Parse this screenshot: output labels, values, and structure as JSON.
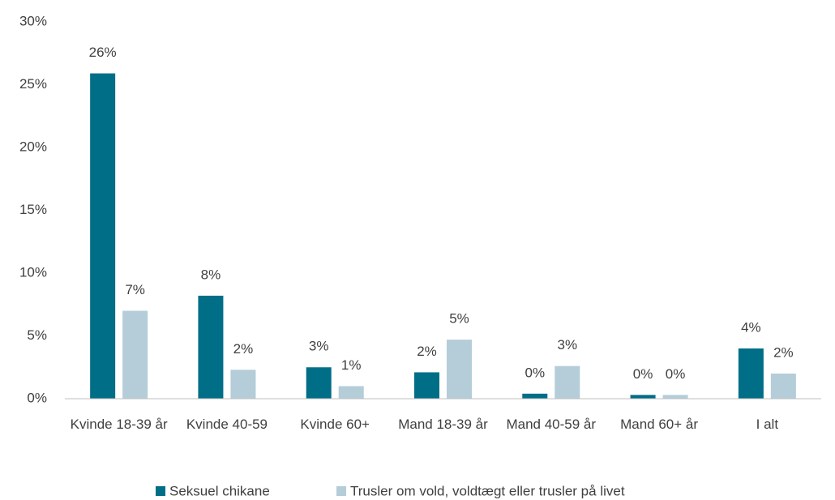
{
  "chart_data": {
    "type": "bar",
    "categories": [
      "Kvinde 18-39 år",
      "Kvinde 40-59",
      "Kvinde 60+",
      "Mand 18-39 år",
      "Mand 40-59 år",
      "Mand 60+ år",
      "I alt"
    ],
    "series": [
      {
        "name": "Seksuel chikane",
        "color": "#006e87",
        "values": [
          25.9,
          8.2,
          2.5,
          2.1,
          0.4,
          0.3,
          4.0
        ],
        "value_labels": [
          "26%",
          "8%",
          "3%",
          "2%",
          "0%",
          "0%",
          "4%"
        ]
      },
      {
        "name": "Trusler om vold, voldtægt eller trusler på livet",
        "color": "#b4cdd8",
        "values": [
          7.0,
          2.3,
          1.0,
          4.7,
          2.6,
          0.3,
          2.0
        ],
        "value_labels": [
          "7%",
          "2%",
          "1%",
          "5%",
          "3%",
          "0%",
          "2%"
        ]
      }
    ],
    "ylim": [
      0,
      30
    ],
    "yticks": [
      {
        "value": 0,
        "label": "0%"
      },
      {
        "value": 5,
        "label": "5%"
      },
      {
        "value": 10,
        "label": "10%"
      },
      {
        "value": 15,
        "label": "15%"
      },
      {
        "value": 20,
        "label": "20%"
      },
      {
        "value": 25,
        "label": "25%"
      },
      {
        "value": 30,
        "label": "30%"
      }
    ],
    "grid": false,
    "legend": "bottom"
  }
}
